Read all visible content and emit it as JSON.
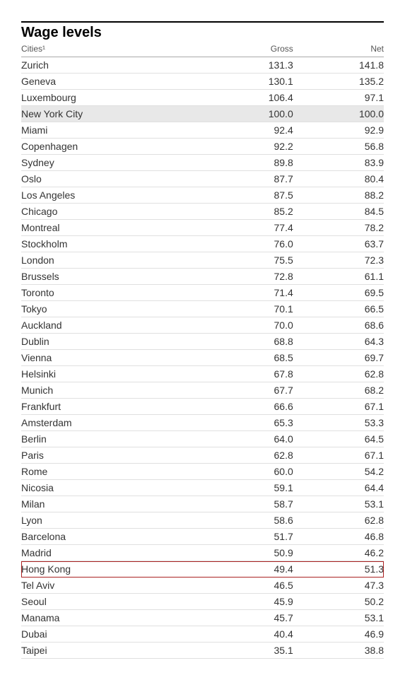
{
  "title": "Wage levels",
  "columns": [
    "Cities¹",
    "Gross",
    "Net"
  ],
  "shaded_city": "New York City",
  "highlight_city": "Hong Kong",
  "highlight_color": "#aa2222",
  "background_color": "#ffffff",
  "shaded_background": "#e8e8e8",
  "border_color": "#e0e0e0",
  "header_border_color": "#aaaaaa",
  "title_fontsize": 20,
  "body_fontsize": 14,
  "header_fontsize": 12,
  "rows": [
    {
      "city": "Zurich",
      "gross": "131.3",
      "net": "141.8"
    },
    {
      "city": "Geneva",
      "gross": "130.1",
      "net": "135.2"
    },
    {
      "city": "Luxembourg",
      "gross": "106.4",
      "net": "97.1"
    },
    {
      "city": "New York City",
      "gross": "100.0",
      "net": "100.0"
    },
    {
      "city": "Miami",
      "gross": "92.4",
      "net": "92.9"
    },
    {
      "city": "Copenhagen",
      "gross": "92.2",
      "net": "56.8"
    },
    {
      "city": "Sydney",
      "gross": "89.8",
      "net": "83.9"
    },
    {
      "city": "Oslo",
      "gross": "87.7",
      "net": "80.4"
    },
    {
      "city": "Los Angeles",
      "gross": "87.5",
      "net": "88.2"
    },
    {
      "city": "Chicago",
      "gross": "85.2",
      "net": "84.5"
    },
    {
      "city": "Montreal",
      "gross": "77.4",
      "net": "78.2"
    },
    {
      "city": "Stockholm",
      "gross": "76.0",
      "net": "63.7"
    },
    {
      "city": "London",
      "gross": "75.5",
      "net": "72.3"
    },
    {
      "city": "Brussels",
      "gross": "72.8",
      "net": "61.1"
    },
    {
      "city": "Toronto",
      "gross": "71.4",
      "net": "69.5"
    },
    {
      "city": "Tokyo",
      "gross": "70.1",
      "net": "66.5"
    },
    {
      "city": "Auckland",
      "gross": "70.0",
      "net": "68.6"
    },
    {
      "city": "Dublin",
      "gross": "68.8",
      "net": "64.3"
    },
    {
      "city": "Vienna",
      "gross": "68.5",
      "net": "69.7"
    },
    {
      "city": "Helsinki",
      "gross": "67.8",
      "net": "62.8"
    },
    {
      "city": "Munich",
      "gross": "67.7",
      "net": "68.2"
    },
    {
      "city": "Frankfurt",
      "gross": "66.6",
      "net": "67.1"
    },
    {
      "city": "Amsterdam",
      "gross": "65.3",
      "net": "53.3"
    },
    {
      "city": "Berlin",
      "gross": "64.0",
      "net": "64.5"
    },
    {
      "city": "Paris",
      "gross": "62.8",
      "net": "67.1"
    },
    {
      "city": "Rome",
      "gross": "60.0",
      "net": "54.2"
    },
    {
      "city": "Nicosia",
      "gross": "59.1",
      "net": "64.4"
    },
    {
      "city": "Milan",
      "gross": "58.7",
      "net": "53.1"
    },
    {
      "city": "Lyon",
      "gross": "58.6",
      "net": "62.8"
    },
    {
      "city": "Barcelona",
      "gross": "51.7",
      "net": "46.8"
    },
    {
      "city": "Madrid",
      "gross": "50.9",
      "net": "46.2"
    },
    {
      "city": "Hong Kong",
      "gross": "49.4",
      "net": "51.3"
    },
    {
      "city": "Tel Aviv",
      "gross": "46.5",
      "net": "47.3"
    },
    {
      "city": "Seoul",
      "gross": "45.9",
      "net": "50.2"
    },
    {
      "city": "Manama",
      "gross": "45.7",
      "net": "53.1"
    },
    {
      "city": "Dubai",
      "gross": "40.4",
      "net": "46.9"
    },
    {
      "city": "Taipei",
      "gross": "35.1",
      "net": "38.8"
    }
  ]
}
